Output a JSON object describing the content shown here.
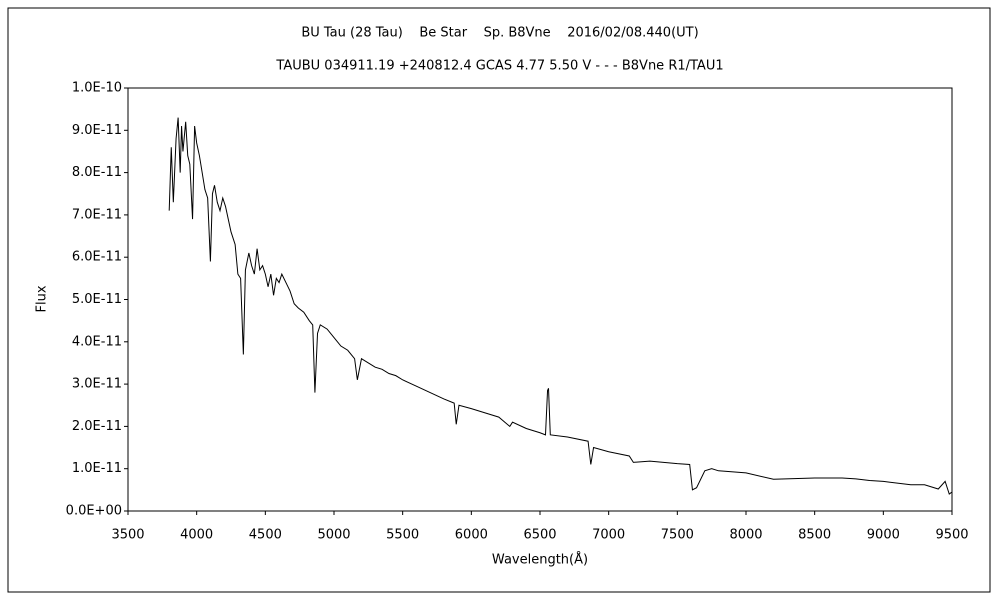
{
  "chart_data": {
    "type": "line",
    "title": "BU Tau (28 Tau)    Be Star    Sp. B8Vne    2016/02/08.440(UT)",
    "subtitle": "TAUBU 034911.19 +240812.4 GCAS 4.77 5.50 V - - - B8Vne R1/TAU1",
    "x_label": "Wavelength(Å)",
    "y_label": "Flux",
    "color": "#000000",
    "grid": false,
    "xlim": [
      3500,
      9500
    ],
    "xticks": [
      3500,
      4000,
      4500,
      5000,
      5500,
      6000,
      6500,
      7000,
      7500,
      8000,
      8500,
      9000,
      9500
    ],
    "ylim": [
      0,
      1e-10
    ],
    "yticks": [
      {
        "value": 0,
        "label": "0.0E+00"
      },
      {
        "value": 1e-11,
        "label": "1.0E-11"
      },
      {
        "value": 2e-11,
        "label": "2.0E-11"
      },
      {
        "value": 3e-11,
        "label": "3.0E-11"
      },
      {
        "value": 4e-11,
        "label": "4.0E-11"
      },
      {
        "value": 5e-11,
        "label": "5.0E-11"
      },
      {
        "value": 6e-11,
        "label": "6.0E-11"
      },
      {
        "value": 7e-11,
        "label": "7.0E-11"
      },
      {
        "value": 8e-11,
        "label": "8.0E-11"
      },
      {
        "value": 9e-11,
        "label": "9.0E-11"
      },
      {
        "value": 1e-10,
        "label": "1.0E-10"
      }
    ],
    "x": [
      3800,
      3815,
      3830,
      3850,
      3865,
      3880,
      3890,
      3900,
      3920,
      3935,
      3950,
      3970,
      3985,
      4000,
      4020,
      4040,
      4060,
      4080,
      4100,
      4115,
      4130,
      4150,
      4170,
      4190,
      4210,
      4230,
      4250,
      4280,
      4300,
      4320,
      4340,
      4355,
      4380,
      4400,
      4420,
      4440,
      4460,
      4480,
      4500,
      4520,
      4540,
      4560,
      4580,
      4600,
      4620,
      4650,
      4680,
      4710,
      4740,
      4780,
      4820,
      4845,
      4861,
      4880,
      4900,
      4950,
      5000,
      5050,
      5100,
      5150,
      5170,
      5200,
      5250,
      5300,
      5350,
      5400,
      5450,
      5500,
      5600,
      5700,
      5800,
      5875,
      5890,
      5910,
      6000,
      6100,
      6200,
      6280,
      6300,
      6400,
      6500,
      6540,
      6555,
      6562,
      6575,
      6700,
      6850,
      6870,
      6890,
      7000,
      7150,
      7180,
      7300,
      7500,
      7590,
      7610,
      7640,
      7700,
      7750,
      7800,
      8000,
      8200,
      8500,
      8700,
      8800,
      8900,
      9000,
      9200,
      9300,
      9400,
      9450,
      9480,
      9500
    ],
    "values": [
      7.1e-11,
      8.6e-11,
      7.3e-11,
      8.8e-11,
      9.3e-11,
      8e-11,
      9.1e-11,
      8.5e-11,
      9.2e-11,
      8.4e-11,
      8.2e-11,
      6.9e-11,
      9.1e-11,
      8.7e-11,
      8.4e-11,
      8e-11,
      7.6e-11,
      7.4e-11,
      5.9e-11,
      7.5e-11,
      7.7e-11,
      7.3e-11,
      7.1e-11,
      7.4e-11,
      7.2e-11,
      6.9e-11,
      6.6e-11,
      6.3e-11,
      5.6e-11,
      5.5e-11,
      3.7e-11,
      5.7e-11,
      6.1e-11,
      5.8e-11,
      5.6e-11,
      6.2e-11,
      5.7e-11,
      5.8e-11,
      5.6e-11,
      5.3e-11,
      5.6e-11,
      5.1e-11,
      5.5e-11,
      5.4e-11,
      5.6e-11,
      5.4e-11,
      5.2e-11,
      4.9e-11,
      4.8e-11,
      4.7e-11,
      4.5e-11,
      4.4e-11,
      2.8e-11,
      4.2e-11,
      4.4e-11,
      4.3e-11,
      4.1e-11,
      3.9e-11,
      3.8e-11,
      3.6e-11,
      3.1e-11,
      3.6e-11,
      3.5e-11,
      3.4e-11,
      3.35e-11,
      3.25e-11,
      3.2e-11,
      3.1e-11,
      2.95e-11,
      2.8e-11,
      2.65e-11,
      2.55e-11,
      2.05e-11,
      2.5e-11,
      2.42e-11,
      2.32e-11,
      2.22e-11,
      2e-11,
      2.1e-11,
      1.95e-11,
      1.85e-11,
      1.8e-11,
      2.85e-11,
      2.9e-11,
      1.8e-11,
      1.75e-11,
      1.65e-11,
      1.1e-11,
      1.5e-11,
      1.4e-11,
      1.3e-11,
      1.15e-11,
      1.18e-11,
      1.12e-11,
      1.1e-11,
      5e-12,
      5.5e-12,
      9.5e-12,
      1e-11,
      9.5e-12,
      9e-12,
      7.5e-12,
      7.8e-12,
      7.8e-12,
      7.6e-12,
      7.2e-12,
      7e-12,
      6.2e-12,
      6.2e-12,
      5.2e-12,
      7e-12,
      4e-12,
      4.5e-12
    ]
  }
}
